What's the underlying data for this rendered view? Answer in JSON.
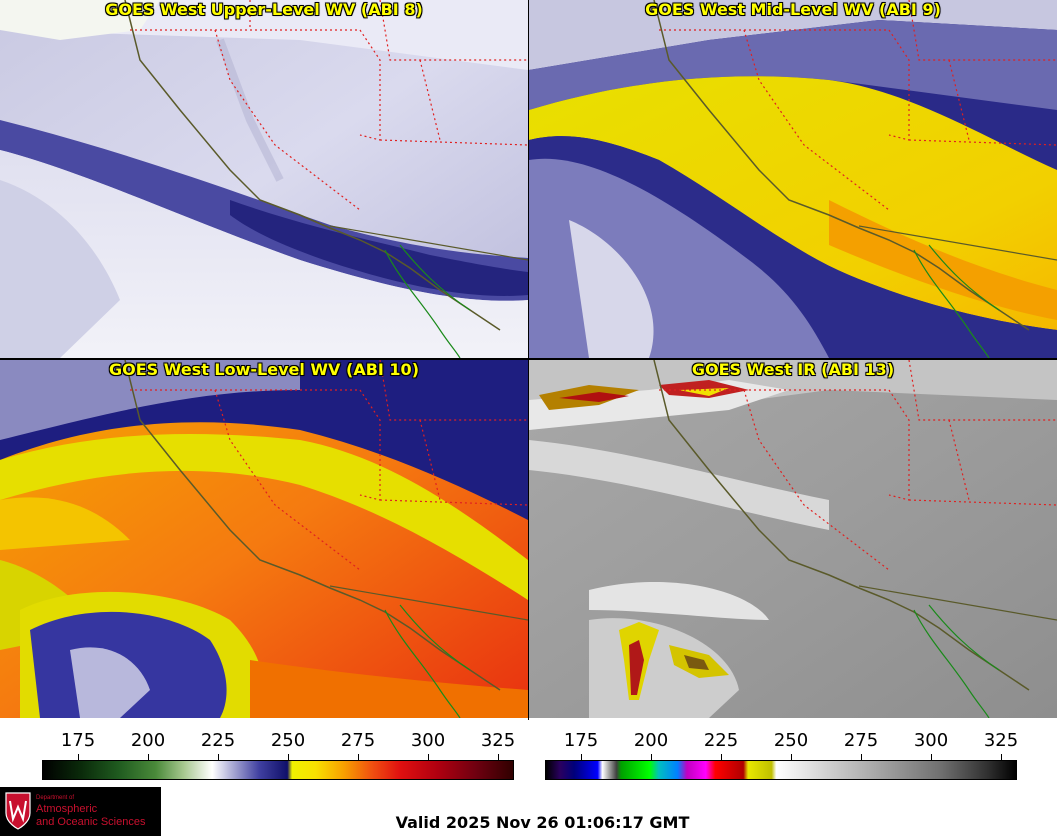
{
  "panels": [
    {
      "title": "GOES West Upper-Level WV (ABI 8)",
      "palette": "wv"
    },
    {
      "title": "GOES West Mid-Level WV (ABI 9)",
      "palette": "wv"
    },
    {
      "title": "GOES West Low-Level WV (ABI 10)",
      "palette": "wv"
    },
    {
      "title": "GOES West IR (ABI 13)",
      "palette": "ir"
    }
  ],
  "colorbars": {
    "wv_ticks": [
      "175",
      "200",
      "225",
      "250",
      "275",
      "300",
      "325"
    ],
    "ir_ticks": [
      "175",
      "200",
      "225",
      "250",
      "275",
      "300",
      "325"
    ]
  },
  "logo": {
    "dept": "Department of",
    "line1": "Atmospheric",
    "line2": "and Oceanic Sciences",
    "color": "#c8102e"
  },
  "valid": "Valid 2025 Nov 26 01:06:17 GMT"
}
